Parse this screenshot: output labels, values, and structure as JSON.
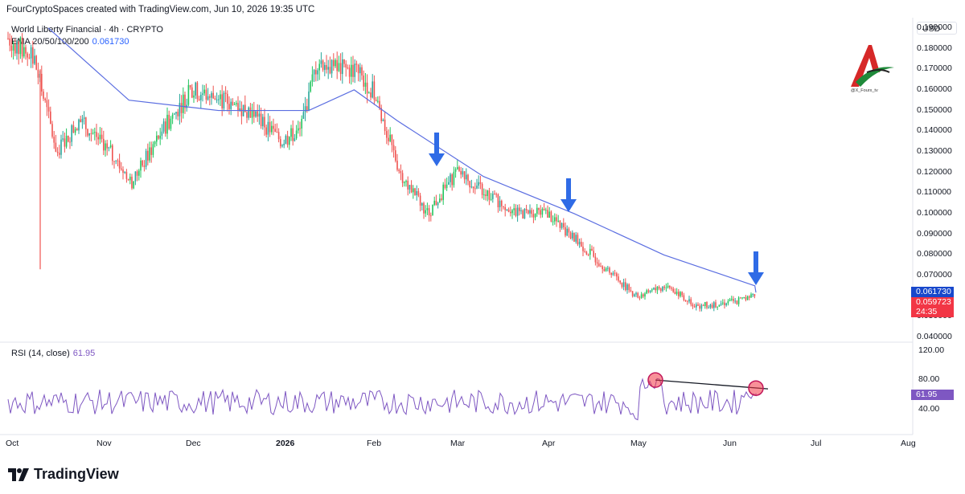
{
  "header": {
    "caption": "FourCryptoSpaces created with TradingView.com, Jun 10, 2026 19:35 UTC"
  },
  "legend": {
    "symbol": "World Liberty Financial · 4h · CRYPTO",
    "ema_label": "EMA 20/50/100/200",
    "ema_value": "0.061730"
  },
  "rsi_legend": {
    "label": "RSI (14, close)",
    "value": "61.95"
  },
  "price_axis": {
    "currency": "USD",
    "ticks": [
      "0.190000",
      "0.180000",
      "0.170000",
      "0.160000",
      "0.150000",
      "0.140000",
      "0.130000",
      "0.120000",
      "0.110000",
      "0.100000",
      "0.090000",
      "0.080000",
      "0.070000",
      "0.050000",
      "0.040000"
    ],
    "ema_tag": "0.061730",
    "price_tag": "0.059723",
    "countdown": "24:35",
    "ema_tag_color": "#1848cc",
    "price_tag_color": "#f23645"
  },
  "rsi_axis": {
    "ticks": [
      "120.00",
      "80.00",
      "40.00"
    ],
    "rsi_tag": "61.95",
    "rsi_tag_color": "#7e57c2"
  },
  "time_axis": {
    "labels": [
      "Oct",
      "Nov",
      "Dec",
      "2026",
      "Feb",
      "Mar",
      "Apr",
      "May",
      "Jun",
      "Jul",
      "Aug"
    ]
  },
  "branding": {
    "watermark": "TradingView",
    "handle": "@X_Fourx_tv"
  },
  "colors": {
    "up": "#26a69a",
    "up_bright": "#22c55e",
    "down": "#ef5350",
    "ema": "#5b6ee1",
    "rsi": "#7e57c2",
    "arrow": "#2f6be6"
  },
  "chart_data": [
    {
      "type": "candlestick",
      "interval": "4h",
      "ylim": [
        0.04,
        0.195
      ],
      "x_labels": [
        "Oct",
        "Nov",
        "Dec",
        "2026",
        "Feb",
        "Mar",
        "Apr",
        "May",
        "Jun",
        "Jul",
        "Aug"
      ],
      "series": [
        {
          "name": "World Liberty Financial",
          "close_path": [
            [
              "Oct",
              0.185
            ],
            [
              "Oct",
              0.175
            ],
            [
              "Oct",
              0.13
            ],
            [
              "Oct",
              0.145
            ],
            [
              "Nov",
              0.135
            ],
            [
              "Nov",
              0.115
            ],
            [
              "Nov",
              0.14
            ],
            [
              "Dec",
              0.16
            ],
            [
              "Dec",
              0.155
            ],
            [
              "Dec",
              0.15
            ],
            [
              "2026",
              0.135
            ],
            [
              "2026",
              0.14
            ],
            [
              "2026",
              0.175
            ],
            [
              "2026",
              0.17
            ],
            [
              "2026",
              0.17
            ],
            [
              "Feb",
              0.16
            ],
            [
              "Feb",
              0.12
            ],
            [
              "Feb",
              0.1
            ],
            [
              "Mar",
              0.12
            ],
            [
              "Mar",
              0.11
            ],
            [
              "Mar",
              0.1
            ],
            [
              "Apr",
              0.1
            ],
            [
              "Apr",
              0.08
            ],
            [
              "May",
              0.06
            ],
            [
              "May",
              0.065
            ],
            [
              "May",
              0.055
            ],
            [
              "Jun",
              0.057
            ],
            [
              "Jun",
              0.0597
            ]
          ],
          "last_close": 0.059723
        },
        {
          "name": "EMA 20/50/100/200",
          "path": [
            [
              "Oct",
              0.19
            ],
            [
              "Nov",
              0.155
            ],
            [
              "Dec",
              0.15
            ],
            [
              "2026",
              0.15
            ],
            [
              "2026",
              0.16
            ],
            [
              "Feb",
              0.145
            ],
            [
              "Mar",
              0.118
            ],
            [
              "Apr",
              0.1
            ],
            [
              "May",
              0.08
            ],
            [
              "Jun",
              0.065
            ],
            [
              "Jun",
              0.06173
            ]
          ],
          "last_value": 0.06173
        }
      ],
      "annotations": [
        "down arrow above EMA near Feb/Mar",
        "down arrow above EMA near Apr",
        "down arrow above EMA near Jun"
      ]
    },
    {
      "type": "line",
      "name": "RSI (14, close)",
      "ylim": [
        20,
        120
      ],
      "last_value": 61.95,
      "trendline": {
        "from": [
          "May",
          80
        ],
        "to": [
          "Jun",
          68
        ]
      },
      "highlights": [
        "circle at RSI peak in May",
        "circle at RSI in Jun"
      ]
    }
  ]
}
